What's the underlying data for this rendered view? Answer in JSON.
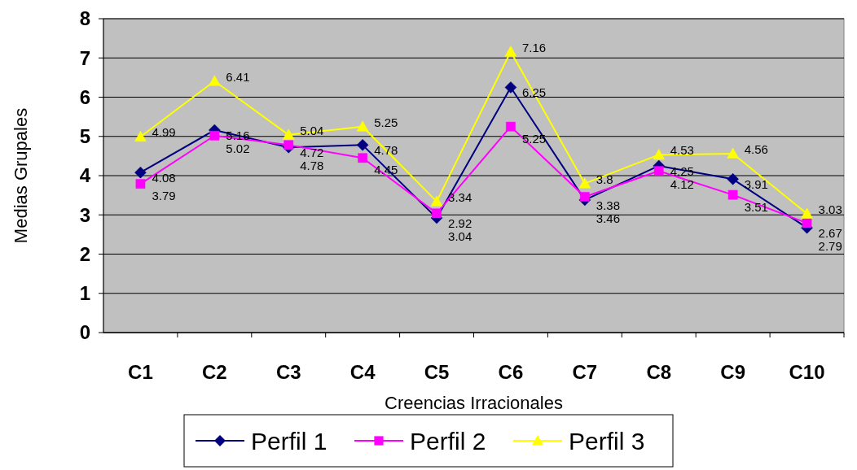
{
  "chart_data": {
    "type": "line",
    "xlabel": "Creencias Irracionales",
    "ylabel": "Medias Grupales",
    "categories": [
      "C1",
      "C2",
      "C3",
      "C4",
      "C5",
      "C6",
      "C7",
      "C8",
      "C9",
      "C10"
    ],
    "series": [
      {
        "name": "Perfil 1",
        "color": "#000080",
        "marker": "diamond",
        "values": [
          4.08,
          5.16,
          4.72,
          4.78,
          2.92,
          6.25,
          3.38,
          4.25,
          3.91,
          2.67
        ]
      },
      {
        "name": "Perfil 2",
        "color": "#ff00ff",
        "marker": "square",
        "values": [
          3.79,
          5.02,
          4.78,
          4.45,
          3.04,
          5.25,
          3.46,
          4.12,
          3.51,
          2.79
        ]
      },
      {
        "name": "Perfil 3",
        "color": "#ffff00",
        "marker": "triangle",
        "values": [
          4.99,
          6.41,
          5.04,
          5.25,
          3.34,
          7.16,
          3.8,
          4.53,
          4.56,
          3.03
        ]
      }
    ],
    "ylim": [
      0,
      8
    ],
    "yticks": [
      0,
      1,
      2,
      3,
      4,
      5,
      6,
      7,
      8
    ],
    "grid": "y",
    "legend": "bottom",
    "data_labels": true
  }
}
